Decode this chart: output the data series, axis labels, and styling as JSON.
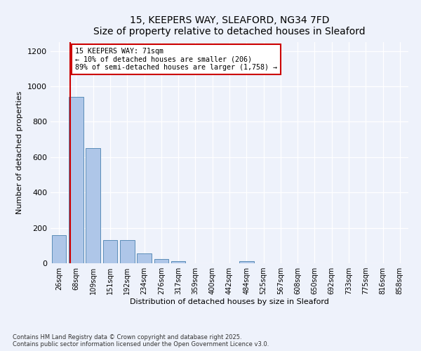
{
  "title": "15, KEEPERS WAY, SLEAFORD, NG34 7FD",
  "subtitle": "Size of property relative to detached houses in Sleaford",
  "xlabel": "Distribution of detached houses by size in Sleaford",
  "ylabel": "Number of detached properties",
  "bin_labels": [
    "26sqm",
    "68sqm",
    "109sqm",
    "151sqm",
    "192sqm",
    "234sqm",
    "276sqm",
    "317sqm",
    "359sqm",
    "400sqm",
    "442sqm",
    "484sqm",
    "525sqm",
    "567sqm",
    "608sqm",
    "650sqm",
    "692sqm",
    "733sqm",
    "775sqm",
    "816sqm",
    "858sqm"
  ],
  "bar_heights": [
    160,
    940,
    650,
    130,
    130,
    55,
    25,
    13,
    0,
    0,
    0,
    13,
    0,
    0,
    0,
    0,
    0,
    0,
    0,
    0,
    0
  ],
  "bar_color": "#aec6e8",
  "bar_edge_color": "#5b8db8",
  "line_color": "#cc0000",
  "annotation_title": "15 KEEPERS WAY: 71sqm",
  "annotation_line1": "← 10% of detached houses are smaller (206)",
  "annotation_line2": "89% of semi-detached houses are larger (1,758) →",
  "annotation_box_color": "#ffffff",
  "annotation_box_edge_color": "#cc0000",
  "ylim": [
    0,
    1250
  ],
  "yticks": [
    0,
    200,
    400,
    600,
    800,
    1000,
    1200
  ],
  "footnote1": "Contains HM Land Registry data © Crown copyright and database right 2025.",
  "footnote2": "Contains public sector information licensed under the Open Government Licence v3.0.",
  "background_color": "#eef2fb"
}
